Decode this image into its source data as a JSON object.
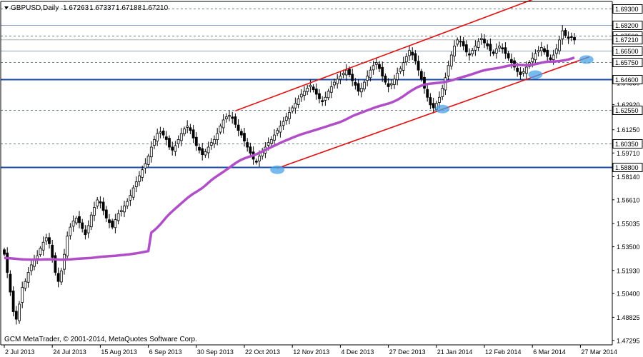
{
  "chart_data": {
    "type": "candlestick",
    "symbol": "GBPUSD,Daily",
    "ohlc": [
      "1.67263",
      "1.67337",
      "1.67188",
      "1.67210"
    ],
    "copyright": "GCM MetaTrader, © 2001-2014, MetaQuotes Software Corp.",
    "ylim": [
      1.47,
      1.6975
    ],
    "y_ticks": [
      "1.69300",
      "1.67210",
      "1.65750",
      "1.64350",
      "1.62920",
      "1.61250",
      "1.59710",
      "1.58140",
      "1.56610",
      "1.55035",
      "1.53500",
      "1.51930",
      "1.50400",
      "1.48825",
      "1.47295"
    ],
    "horizontal_lines": [
      {
        "label": "1.69300",
        "value": 1.693,
        "style": "dashed",
        "color": "#6e7f8f"
      },
      {
        "label": "1.68200",
        "value": 1.682,
        "style": "solid",
        "color": "#8fa5c4"
      },
      {
        "label": "1.67500",
        "value": 1.675,
        "style": "dashed",
        "color": "#6e7f8f"
      },
      {
        "label": "1.66500",
        "value": 1.665,
        "style": "solid",
        "color": "#8fa5c4"
      },
      {
        "label": "1.65750",
        "value": 1.6575,
        "style": "dashed",
        "color": "#6e7f8f"
      },
      {
        "label": "1.64600",
        "value": 1.646,
        "style": "thick",
        "color": "#1a4aa8"
      },
      {
        "label": "1.62550",
        "value": 1.6255,
        "style": "dashed",
        "color": "#6e7f8f"
      },
      {
        "label": "1.60350",
        "value": 1.6035,
        "style": "dashed",
        "color": "#6e7f8f"
      },
      {
        "label": "1.58800",
        "value": 1.588,
        "style": "thick",
        "color": "#1a4aa8"
      }
    ],
    "current_price": {
      "label": "1.67210",
      "value": 1.6721
    },
    "x_ticks": [
      "2 Jul 2013",
      "24 Jul 2013",
      "15 Aug 2013",
      "6 Sep 2013",
      "30 Sep 2013",
      "22 Oct 2013",
      "12 Nov 2013",
      "4 Dec 2013",
      "27 Dec 2013",
      "21 Jan 2014",
      "12 Feb 2014",
      "6 Mar 2014",
      "27 Mar 2014"
    ],
    "x_tick_index": [
      0,
      16,
      32,
      48,
      64,
      80,
      96,
      112,
      128,
      144,
      160,
      176,
      192
    ],
    "closes": [
      1.53,
      1.518,
      1.505,
      1.492,
      1.487,
      1.497,
      1.508,
      1.512,
      1.518,
      1.523,
      1.527,
      1.529,
      1.534,
      1.538,
      1.541,
      1.537,
      1.528,
      1.518,
      1.512,
      1.519,
      1.53,
      1.542,
      1.548,
      1.552,
      1.554,
      1.551,
      1.547,
      1.543,
      1.549,
      1.556,
      1.561,
      1.566,
      1.564,
      1.559,
      1.554,
      1.551,
      1.548,
      1.553,
      1.557,
      1.559,
      1.562,
      1.565,
      1.569,
      1.574,
      1.578,
      1.582,
      1.586,
      1.59,
      1.595,
      1.601,
      1.606,
      1.61,
      1.611,
      1.609,
      1.606,
      1.601,
      1.599,
      1.602,
      1.606,
      1.61,
      1.613,
      1.615,
      1.612,
      1.607,
      1.602,
      1.599,
      1.596,
      1.598,
      1.601,
      1.604,
      1.606,
      1.61,
      1.615,
      1.619,
      1.621,
      1.622,
      1.62,
      1.616,
      1.612,
      1.609,
      1.605,
      1.601,
      1.597,
      1.593,
      1.591,
      1.595,
      1.598,
      1.601,
      1.604,
      1.606,
      1.609,
      1.612,
      1.615,
      1.618,
      1.621,
      1.624,
      1.627,
      1.63,
      1.633,
      1.636,
      1.638,
      1.64,
      1.642,
      1.639,
      1.636,
      1.633,
      1.631,
      1.634,
      1.638,
      1.641,
      1.644,
      1.646,
      1.648,
      1.65,
      1.652,
      1.649,
      1.645,
      1.642,
      1.638,
      1.64,
      1.644,
      1.648,
      1.652,
      1.655,
      1.657,
      1.653,
      1.648,
      1.644,
      1.641,
      1.643,
      1.646,
      1.65,
      1.653,
      1.657,
      1.661,
      1.665,
      1.662,
      1.658,
      1.652,
      1.646,
      1.64,
      1.634,
      1.629,
      1.627,
      1.63,
      1.634,
      1.64,
      1.647,
      1.655,
      1.662,
      1.668,
      1.672,
      1.671,
      1.668,
      1.664,
      1.662,
      1.665,
      1.668,
      1.671,
      1.673,
      1.67,
      1.668,
      1.665,
      1.663,
      1.666,
      1.668,
      1.666,
      1.663,
      1.66,
      1.657,
      1.654,
      1.651,
      1.649,
      1.651,
      1.654,
      1.657,
      1.66,
      1.663,
      1.665,
      1.667,
      1.664,
      1.661,
      1.659,
      1.662,
      1.666,
      1.672,
      1.678,
      1.675,
      1.673,
      1.674,
      1.672
    ]
  }
}
